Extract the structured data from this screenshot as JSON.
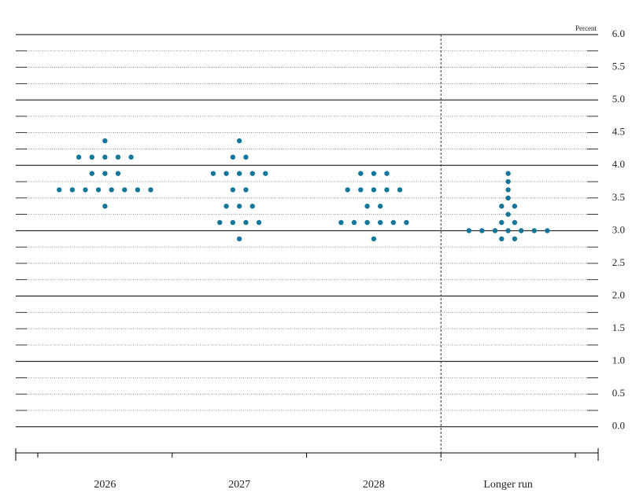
{
  "chart_data": {
    "type": "dot",
    "unit_label": "Percent",
    "categories": [
      "2026",
      "2027",
      "2028",
      "Longer run"
    ],
    "values": [
      [
        4.375,
        4.125,
        4.125,
        4.125,
        4.125,
        4.125,
        3.875,
        3.875,
        3.875,
        3.625,
        3.625,
        3.625,
        3.625,
        3.625,
        3.625,
        3.625,
        3.625,
        3.375
      ],
      [
        4.375,
        4.125,
        4.125,
        3.875,
        3.875,
        3.875,
        3.875,
        3.875,
        3.625,
        3.625,
        3.375,
        3.375,
        3.375,
        3.125,
        3.125,
        3.125,
        3.125,
        2.875
      ],
      [
        3.875,
        3.875,
        3.875,
        3.625,
        3.625,
        3.625,
        3.625,
        3.625,
        3.375,
        3.375,
        3.125,
        3.125,
        3.125,
        3.125,
        3.125,
        3.125,
        2.875
      ],
      [
        3.875,
        3.75,
        3.625,
        3.5,
        3.375,
        3.375,
        3.25,
        3.125,
        3.125,
        3.0,
        3.0,
        3.0,
        3.0,
        3.0,
        3.0,
        3.0,
        2.875,
        2.875
      ]
    ],
    "color": "#13779b",
    "ylim": [
      -0.4,
      6.0
    ],
    "yticks": [
      {
        "value": 0,
        "label": "0.0"
      },
      0.5,
      {
        "value": 1,
        "label": "1.0"
      },
      1.5,
      {
        "value": 2,
        "label": "2.0"
      },
      2.5,
      {
        "value": 3,
        "label": "3.0"
      },
      3.5,
      {
        "value": 4,
        "label": "4.0"
      },
      4.5,
      {
        "value": 5,
        "label": "5.0"
      },
      5.5,
      {
        "value": 6,
        "label": "6.0"
      }
    ],
    "grid": true
  }
}
